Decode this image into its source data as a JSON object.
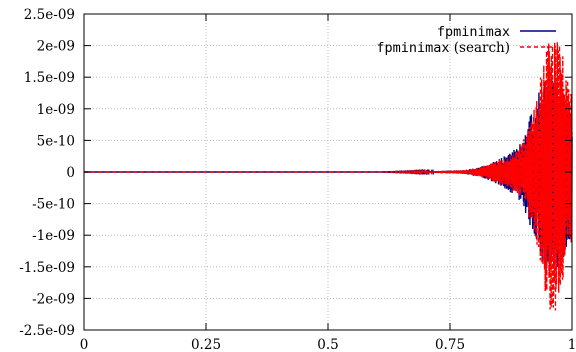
{
  "chart_data": {
    "type": "line",
    "title": "",
    "xlabel": "",
    "ylabel": "",
    "xlim": [
      0,
      1
    ],
    "ylim": [
      -2.5e-09,
      2.5e-09
    ],
    "x_ticks": [
      0,
      0.25,
      0.5,
      0.75,
      1
    ],
    "x_tick_labels": [
      "0",
      "0.25",
      "0.5",
      "0.75",
      "1"
    ],
    "y_ticks": [
      -2.5e-09,
      -2e-09,
      -1.5e-09,
      -1e-09,
      -5e-10,
      0,
      5e-10,
      1e-09,
      1.5e-09,
      2e-09,
      2.5e-09
    ],
    "y_tick_labels": [
      "-2.5e-09",
      "-2e-09",
      "-1.5e-09",
      "-1e-09",
      "-5e-10",
      "0",
      "5e-10",
      "1e-09",
      "1.5e-09",
      "2e-09",
      "2.5e-09"
    ],
    "grid": true,
    "legend_position": "top-right",
    "series": [
      {
        "name_mono": "fpminimax",
        "name_rest": "",
        "color": "#000080",
        "style": "solid",
        "envelope": {
          "x": [
            0,
            0.6,
            0.7,
            0.78,
            0.82,
            0.85,
            0.87,
            0.89,
            0.9,
            0.91,
            0.92,
            0.93,
            0.94,
            0.95,
            0.96,
            0.97,
            0.98,
            0.99,
            1.0
          ],
          "y": [
            0,
            0,
            1e-11,
            3e-11,
            1e-10,
            2e-10,
            3e-10,
            4.5e-10,
            5e-10,
            8e-10,
            1e-09,
            1.25e-09,
            1.45e-09,
            1.55e-09,
            1.55e-09,
            1.6e-09,
            1.45e-09,
            1.2e-09,
            1.1e-09
          ]
        }
      },
      {
        "name_mono": "fpminimax",
        "name_rest": " (search)",
        "color": "#ff0000",
        "style": "dashed",
        "envelope": {
          "x": [
            0,
            0.6,
            0.7,
            0.78,
            0.82,
            0.85,
            0.87,
            0.89,
            0.9,
            0.91,
            0.92,
            0.93,
            0.94,
            0.95,
            0.96,
            0.97,
            0.98,
            0.99,
            1.0
          ],
          "y": [
            0,
            0,
            1e-11,
            3e-11,
            1e-10,
            2e-10,
            2.5e-10,
            3.5e-10,
            5e-10,
            7e-10,
            9e-10,
            1.3e-09,
            1.7e-09,
            2.1e-09,
            2.3e-09,
            2.2e-09,
            1.9e-09,
            1.5e-09,
            1.3e-09
          ]
        }
      }
    ]
  }
}
